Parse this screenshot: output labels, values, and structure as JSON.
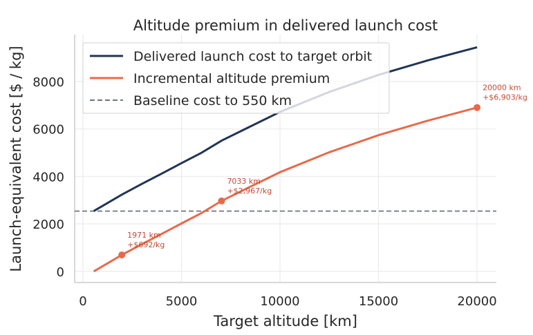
{
  "chart_data": {
    "type": "line",
    "title": "Altitude premium in delivered launch cost",
    "xlabel": "Target altitude [km]",
    "ylabel": "Launch-equivalent cost [$ / kg]",
    "xlim": [
      -420,
      20980
    ],
    "ylim": [
      -470,
      9980
    ],
    "xticks": [
      0,
      5000,
      10000,
      15000,
      20000
    ],
    "yticks": [
      0,
      2000,
      4000,
      6000,
      8000
    ],
    "grid": true,
    "legend_position": "top-left",
    "x": [
      550,
      1971,
      3000,
      4000,
      5000,
      6000,
      7033,
      8500,
      10000,
      12500,
      15000,
      17500,
      20000
    ],
    "series": [
      {
        "name": "Delivered launch cost to target orbit",
        "color": "#1f3556",
        "style": "solid",
        "values": [
          2540,
          3232,
          3690,
          4120,
          4560,
          4990,
          5507,
          6110,
          6720,
          7560,
          8280,
          8890,
          9443
        ]
      },
      {
        "name": "Incremental altitude premium",
        "color": "#e8694a",
        "style": "solid",
        "values": [
          0,
          692,
          1150,
          1580,
          2020,
          2450,
          2967,
          3570,
          4180,
          5020,
          5740,
          6350,
          6903
        ]
      },
      {
        "name": "Baseline cost to 550 km",
        "color": "#6b7482",
        "style": "dashed",
        "y": 2540
      }
    ],
    "annotations": [
      {
        "x": 1971,
        "y": 692,
        "line1": "1971 km",
        "line2": "+$692/kg"
      },
      {
        "x": 7033,
        "y": 2967,
        "line1": "7033 km",
        "line2": "+$2,967/kg"
      },
      {
        "x": 20000,
        "y": 6903,
        "line1": "20000 km",
        "line2": "+$6,903/kg"
      }
    ],
    "annotation_color": "#c24a34"
  }
}
